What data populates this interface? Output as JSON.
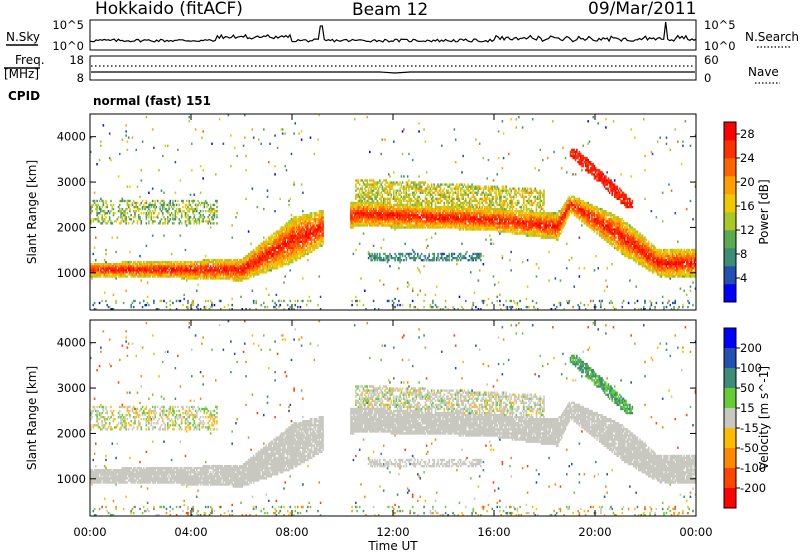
{
  "header": {
    "station": "Hokkaido (fitACF)",
    "beam": "Beam 12",
    "date": "09/Mar/2011"
  },
  "top_panel": {
    "left_label": "N.Sky",
    "right_label": "N.Search",
    "left_ticks": [
      "10^5",
      "10^0"
    ],
    "right_ticks": [
      "10^5",
      "10^0"
    ]
  },
  "freq_panel": {
    "label_top": "Freq.",
    "label_unit": "[MHz]",
    "left_ticks": [
      "18",
      "8"
    ],
    "right_ticks": [
      "60",
      "0"
    ],
    "right_label": "Nave"
  },
  "cpid": {
    "label": "CPID",
    "value": "normal (fast) 151"
  },
  "colors": {
    "power": [
      "#0000ff",
      "#2050b0",
      "#3c8c78",
      "#5aaa50",
      "#a8c828",
      "#f0c800",
      "#ffa000",
      "#ff6400",
      "#ff3000",
      "#ff0000"
    ],
    "velocity": [
      "#0000ff",
      "#2050b0",
      "#3c8c78",
      "#66cc33",
      "#c8c8c0",
      "#ffbb00",
      "#ff8800",
      "#ff4400",
      "#ff0000"
    ]
  },
  "chart_data": [
    {
      "type": "heatmap",
      "title": "",
      "xlabel": "",
      "ylabel": "Slant Range [km]",
      "ylim": [
        180,
        4500
      ],
      "xlim": [
        "00:00",
        "24:00"
      ],
      "y_ticks": [
        "1000",
        "2000",
        "3000",
        "4000"
      ],
      "colorbar": {
        "label": "Power [dB]",
        "ticks": [
          "4",
          "8",
          "12",
          "16",
          "20",
          "24",
          "28"
        ],
        "range": [
          0,
          30
        ]
      },
      "main_echo_band": [
        {
          "t": 0,
          "low": 900,
          "high": 1200
        },
        {
          "t": 4,
          "low": 850,
          "high": 1250
        },
        {
          "t": 6,
          "low": 800,
          "high": 1300
        },
        {
          "t": 8,
          "low": 1200,
          "high": 2200
        },
        {
          "t": 10.5,
          "low": 2000,
          "high": 2550
        },
        {
          "t": 14,
          "low": 1950,
          "high": 2450
        },
        {
          "t": 16,
          "low": 1900,
          "high": 2400
        },
        {
          "t": 18.5,
          "low": 1700,
          "high": 2300
        },
        {
          "t": 19,
          "low": 2300,
          "high": 2700
        },
        {
          "t": 21,
          "low": 1400,
          "high": 2200
        },
        {
          "t": 22.5,
          "low": 900,
          "high": 1500
        },
        {
          "t": 24,
          "low": 900,
          "high": 1500
        }
      ]
    },
    {
      "type": "heatmap",
      "title": "",
      "xlabel": "Time UT",
      "ylabel": "Slant Range [km]",
      "ylim": [
        180,
        4500
      ],
      "xlim": [
        "00:00",
        "24:00"
      ],
      "x_ticks": [
        "00:00",
        "04:00",
        "08:00",
        "12:00",
        "16:00",
        "20:00",
        "00:00"
      ],
      "y_ticks": [
        "1000",
        "2000",
        "3000",
        "4000"
      ],
      "colorbar": {
        "label": "Velocity [m s^-1]",
        "ticks": [
          "200",
          "100",
          "50",
          "15",
          "-15",
          "-50",
          "-100",
          "-200"
        ],
        "range": [
          -250,
          250
        ]
      }
    }
  ]
}
